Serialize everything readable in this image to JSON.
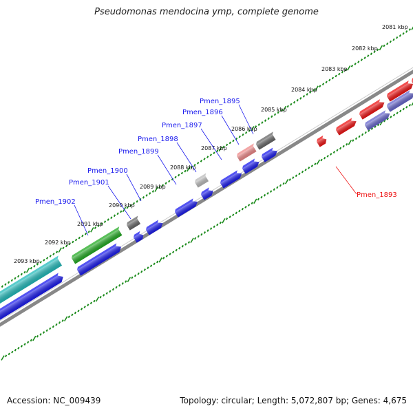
{
  "title": "Pseudomonas mendocina ymp, complete genome",
  "footer": {
    "accession": "Accession: NC_009439",
    "summary": "Topology: circular; Length: 5,072,807 bp; Genes: 4,675"
  },
  "colors": {
    "backbone": "#888888",
    "ticks": "#1a8a1a",
    "forward_gene": "#1a1aee",
    "reverse_gene": "#ee1111",
    "rna_gene": "#22bbbb",
    "green_gene": "#22aa22",
    "dark_gene": "#666666",
    "light_gene": "#bbbbbb",
    "pink_gene": "#ee8888",
    "purple_gene": "#6666cc"
  },
  "kbp_labels": [
    "2081 kbp",
    "2082 kbp",
    "2083 kbp",
    "2084 kbp",
    "2085 kbp",
    "2086 kbp",
    "2087 kbp",
    "2088 kbp",
    "2089 kbp",
    "2090 kbp",
    "2091 kbp",
    "2092 kbp",
    "2093 kbp"
  ],
  "gene_labels": [
    {
      "name": "Pmen_1895",
      "color": "#1a1aee"
    },
    {
      "name": "Pmen_1896",
      "color": "#1a1aee"
    },
    {
      "name": "Pmen_1897",
      "color": "#1a1aee"
    },
    {
      "name": "Pmen_1898",
      "color": "#1a1aee"
    },
    {
      "name": "Pmen_1899",
      "color": "#1a1aee"
    },
    {
      "name": "Pmen_1900",
      "color": "#1a1aee"
    },
    {
      "name": "Pmen_1901",
      "color": "#1a1aee"
    },
    {
      "name": "Pmen_1902",
      "color": "#1a1aee"
    },
    {
      "name": "Pmen_1893",
      "color": "#ee1111"
    }
  ]
}
